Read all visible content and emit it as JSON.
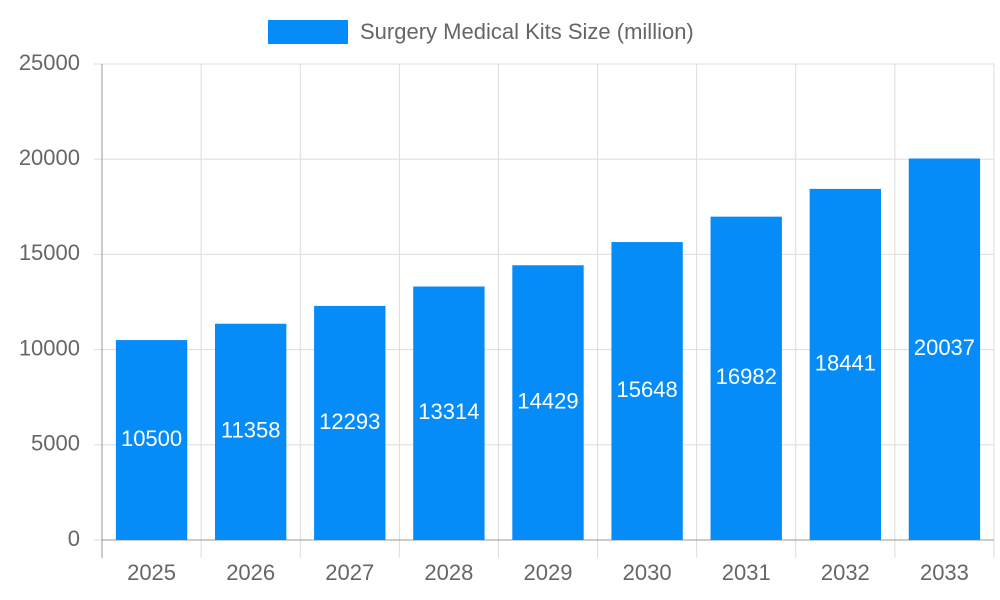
{
  "chart_data": {
    "type": "bar",
    "categories": [
      "2025",
      "2026",
      "2027",
      "2028",
      "2029",
      "2030",
      "2031",
      "2032",
      "2033"
    ],
    "series": [
      {
        "name": "Surgery Medical Kits Size (million)",
        "color": "#058cf9",
        "values": [
          10500,
          11358,
          12293,
          13314,
          14429,
          15648,
          16982,
          18441,
          20037
        ]
      }
    ],
    "ylim": [
      0,
      25000
    ],
    "yticks": [
      0,
      5000,
      10000,
      15000,
      20000,
      25000
    ],
    "grid": true
  }
}
